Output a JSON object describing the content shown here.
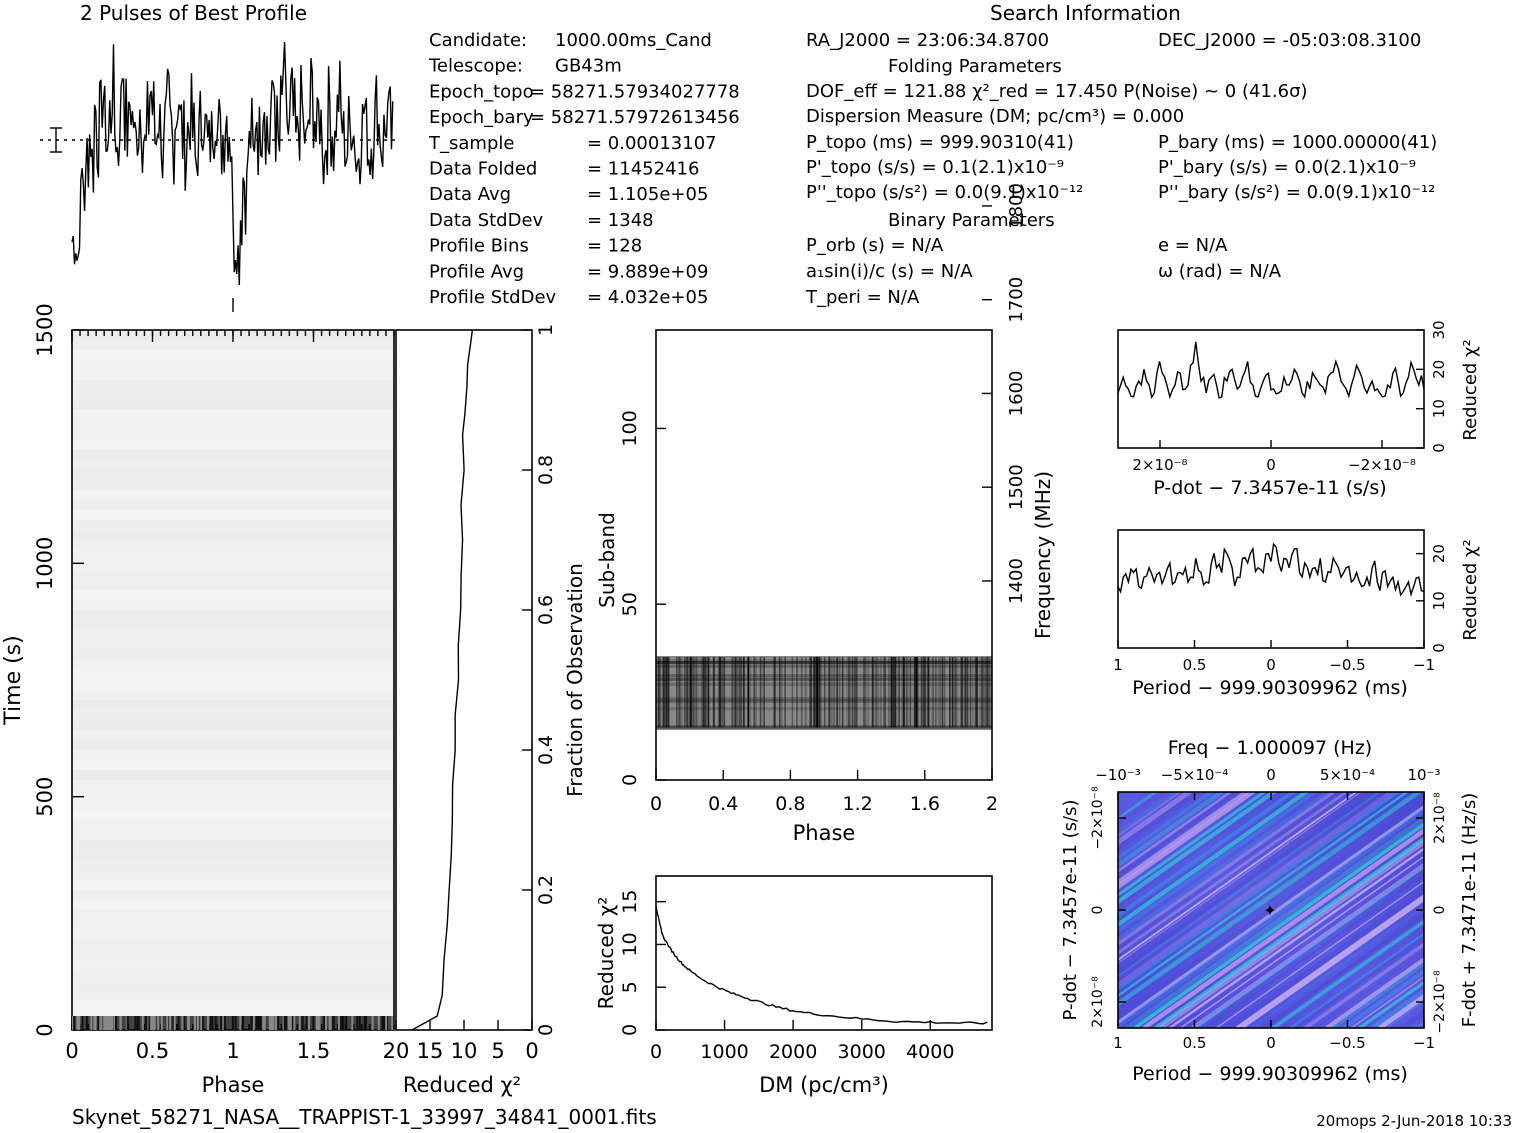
{
  "figure": {
    "profile_title": "2 Pulses of Best Profile",
    "search_title": "Search Information",
    "folding_heading": "Folding Parameters",
    "binary_heading": "Binary Parameters",
    "filename": "Skynet_58271_NASA__TRAPPIST-1_33997_34841_0001.fits",
    "footer_right": "20mops  2-Jun-2018 10:33"
  },
  "candidate_info": [
    {
      "label": "Candidate:",
      "value": "1000.00ms_Cand"
    },
    {
      "label": "Telescope:",
      "value": "GB43m"
    },
    {
      "label": "Epoch_topo",
      "value": "= 58271.57934027778"
    },
    {
      "label": "Epoch_bary",
      "value": "= 58271.57972613456"
    },
    {
      "label": "T_sample",
      "value": "= 0.00013107"
    },
    {
      "label": "Data Folded",
      "value": "= 11452416"
    },
    {
      "label": "Data Avg",
      "value": "= 1.105e+05"
    },
    {
      "label": "Data StdDev",
      "value": "= 1348"
    },
    {
      "label": "Profile Bins",
      "value": "= 128"
    },
    {
      "label": "Profile Avg",
      "value": "= 9.889e+09"
    },
    {
      "label": "Profile StdDev",
      "value": "= 4.032e+05"
    }
  ],
  "search_info": {
    "ra": "RA_J2000 = 23:06:34.8700",
    "dec": "DEC_J2000 = -05:03:08.3100",
    "dof": "DOF_eff = 121.88  χ²_red = 17.450  P(Noise) ~ 0    (41.6σ)",
    "dm": "Dispersion Measure (DM; pc/cm³) = 0.000",
    "p_topo": "P_topo (ms) =  999.90310(41)",
    "p_bary": "P_bary (ms) =  1000.00000(41)",
    "pd_topo": "P'_topo (s/s) =  0.1(2.1)x10⁻⁹",
    "pd_bary": "P'_bary (s/s) = 0.0(2.1)x10⁻⁹",
    "pdd_topo": "P''_topo (s/s²) = 0.0(9.1)x10⁻¹²",
    "pdd_bary": "P''_bary (s/s²) = 0.0(9.1)x10⁻¹²",
    "p_orb": "P_orb (s) = N/A",
    "e": "e = N/A",
    "a1": "a₁sin(i)/c (s) = N/A",
    "omega": "ω (rad) = N/A",
    "t_peri": "T_peri = N/A"
  },
  "chart_data": [
    {
      "type": "line",
      "name": "pulse_profile",
      "title": "2 Pulses of Best Profile",
      "xlim": [
        0,
        2
      ],
      "description_values": "two repeats of a noisy profile with dips near phase 0.05 and 1.05",
      "baseline": 0.55,
      "values": [
        0.18,
        0.22,
        0.12,
        0.3,
        0.45,
        0.38,
        0.55,
        0.62,
        0.5,
        0.72,
        0.6,
        0.68,
        0.78,
        0.66,
        0.58,
        0.7,
        0.82,
        0.64,
        0.55,
        0.72,
        0.9,
        0.7,
        0.62,
        0.75,
        0.68,
        0.58,
        0.66,
        0.74,
        0.62,
        0.55,
        0.68,
        0.8,
        0.72,
        0.6,
        0.7,
        0.66,
        0.52,
        0.62,
        0.74,
        0.65,
        0.58,
        0.7,
        0.78,
        0.66,
        0.6,
        0.56,
        0.64,
        0.7,
        0.62,
        0.5,
        0.58,
        0.66,
        0.72,
        0.63,
        0.55,
        0.6,
        0.68,
        0.74,
        0.65,
        0.58,
        0.62,
        0.7,
        0.66,
        0.6
      ]
    },
    {
      "type": "heatmap",
      "name": "time_phase",
      "xlabel": "Phase",
      "ylabel": "Time (s)",
      "xticks": [
        "0",
        "0.5",
        "1",
        "1.5"
      ],
      "yticks": [
        "0",
        "500",
        "1000",
        "1500"
      ],
      "xlim": [
        0,
        2
      ],
      "ylim": [
        0,
        1500
      ]
    },
    {
      "type": "line",
      "name": "time_chi2",
      "xlabel": "Reduced χ²",
      "ylabel": "Fraction of Observation",
      "xticks": [
        "20",
        "15",
        "10",
        "5",
        "0"
      ],
      "yticks": [
        "0",
        "0.2",
        "0.4",
        "0.6",
        "0.8",
        "1"
      ],
      "xlim": [
        20,
        0
      ],
      "ylim": [
        0,
        1
      ],
      "x": [
        17.5,
        13.8,
        13.2,
        12.9,
        12.6,
        12.3,
        12.0,
        11.8,
        11.5,
        11.4,
        11.2,
        11.0,
        10.9,
        10.7,
        10.5,
        10.4,
        10.3,
        10.1,
        10.0,
        9.8,
        9.6,
        9.4,
        9.2,
        8.8
      ],
      "y": [
        0.0,
        0.02,
        0.05,
        0.1,
        0.15,
        0.2,
        0.25,
        0.3,
        0.35,
        0.4,
        0.45,
        0.5,
        0.55,
        0.6,
        0.65,
        0.7,
        0.75,
        0.8,
        0.85,
        0.88,
        0.92,
        0.95,
        0.98,
        1.0
      ]
    },
    {
      "type": "heatmap",
      "name": "subband_phase",
      "xlabel": "Phase",
      "ylabel": "Sub-band",
      "y2label": "Frequency (MHz)",
      "xticks": [
        "0",
        "0.4",
        "0.8",
        "1.2",
        "1.6",
        "2"
      ],
      "yticks": [
        "0",
        "50",
        "100"
      ],
      "y2ticks": [
        "1400",
        "1500",
        "1600",
        "1700",
        "1800"
      ],
      "xlim": [
        0,
        2
      ],
      "ylim": [
        0,
        128
      ],
      "band_rows": [
        15,
        35
      ]
    },
    {
      "type": "line",
      "name": "dm_chi2",
      "xlabel": "DM (pc/cm³)",
      "ylabel": "Reduced χ²",
      "xticks": [
        "0",
        "1000",
        "2000",
        "3000",
        "4000"
      ],
      "yticks": [
        "0",
        "5",
        "10",
        "15"
      ],
      "xlim": [
        0,
        4900
      ],
      "ylim": [
        0,
        18
      ],
      "x": [
        0,
        50,
        100,
        200,
        300,
        400,
        500,
        700,
        900,
        1100,
        1300,
        1500,
        1800,
        2100,
        2500,
        3000,
        3500,
        4000,
        4500,
        4900
      ],
      "y": [
        14.5,
        12.5,
        11.0,
        9.6,
        8.5,
        7.6,
        6.9,
        5.8,
        5.0,
        4.3,
        3.8,
        3.3,
        2.6,
        2.1,
        1.7,
        1.3,
        1.0,
        0.9,
        0.8,
        0.8
      ]
    },
    {
      "type": "line",
      "name": "pdot_chi2",
      "xlabel": "P-dot − 7.3457e-11 (s/s)",
      "ylabel": "Reduced χ²",
      "xticks": [
        "2×10⁻⁸",
        "0",
        "−2×10⁻⁸"
      ],
      "yticks": [
        "0",
        "10",
        "20",
        "30"
      ],
      "ylim": [
        0,
        30
      ],
      "values": [
        14,
        18,
        15,
        13,
        17,
        20,
        16,
        14,
        22,
        18,
        13,
        16,
        19,
        15,
        21,
        27,
        17,
        14,
        18,
        16,
        13,
        17,
        20,
        15,
        18,
        22,
        16,
        13,
        17,
        19,
        15,
        14,
        18,
        16,
        20,
        17,
        13,
        15,
        18,
        16,
        14,
        19,
        22,
        17,
        15,
        16,
        21,
        18,
        14,
        17,
        15,
        13,
        16,
        19,
        17,
        14,
        18,
        20,
        16,
        15
      ]
    },
    {
      "type": "line",
      "name": "period_chi2",
      "xlabel": "Period − 999.90309962 (ms)",
      "ylabel": "Reduced χ²",
      "xticks": [
        "1",
        "0.5",
        "0",
        "−0.5",
        "−1"
      ],
      "yticks": [
        "0",
        "10",
        "20"
      ],
      "ylim": [
        0,
        25
      ],
      "values": [
        13,
        15,
        14,
        16,
        13,
        15,
        17,
        14,
        16,
        15,
        18,
        14,
        16,
        17,
        15,
        19,
        16,
        14,
        18,
        17,
        16,
        20,
        17,
        15,
        19,
        18,
        21,
        17,
        16,
        20,
        22,
        18,
        19,
        17,
        21,
        16,
        18,
        15,
        17,
        19,
        14,
        16,
        18,
        15,
        17,
        14,
        16,
        13,
        15,
        17,
        14,
        16,
        13,
        15,
        14,
        12,
        14,
        13,
        15,
        12
      ]
    },
    {
      "type": "heatmap",
      "name": "period_pdot",
      "title": "Freq − 1.000097 (Hz)",
      "xlabel": "Period − 999.90309962 (ms)",
      "ylabel": "P-dot − 7.3457e-11 (s/s)",
      "x2label": "Freq − 1.000097 (Hz)",
      "y2label": "F-dot + 7.3471e-11 (Hz/s)",
      "xticks": [
        "1",
        "0.5",
        "0",
        "−0.5",
        "−1"
      ],
      "x2ticks": [
        "−10⁻³",
        "−5×10⁻⁴",
        "0",
        "5×10⁻⁴",
        "10⁻³"
      ],
      "yticks": [
        "2×10⁻⁸",
        "0",
        "−2×10⁻⁸"
      ],
      "y2ticks": [
        "−2×10⁻⁸",
        "0",
        "2×10⁻⁸"
      ],
      "colors": [
        "#4b4bd6",
        "#3a8ae8",
        "#2ad2d8",
        "#c8a0f0",
        "#e8c8f8"
      ]
    }
  ]
}
